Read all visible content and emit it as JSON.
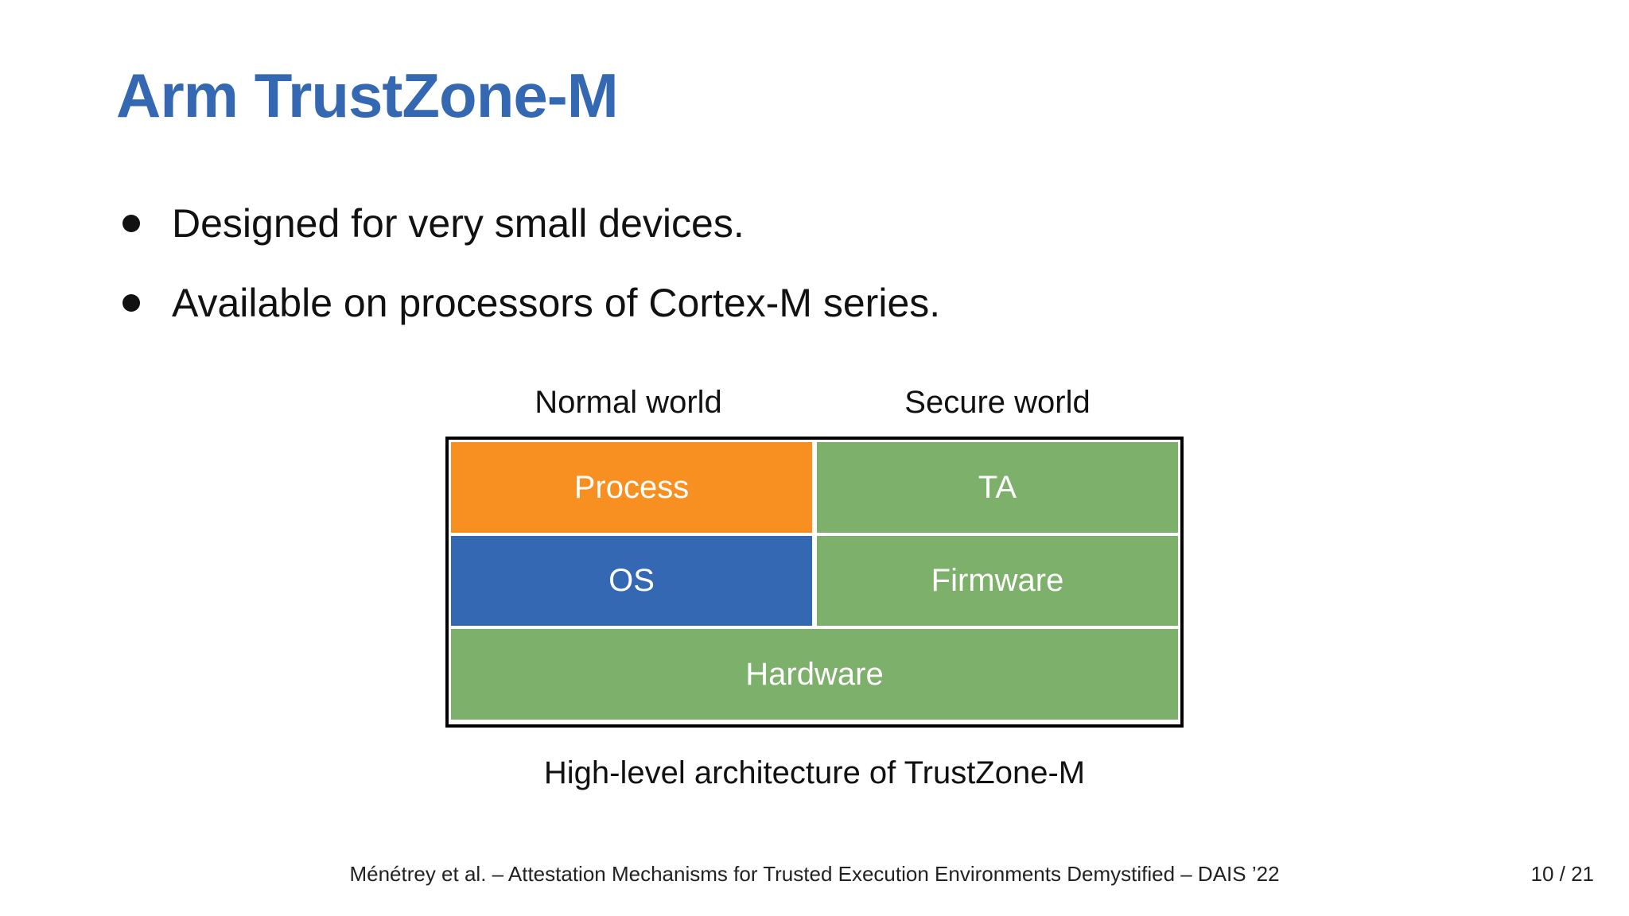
{
  "slide": {
    "title": "Arm TrustZone-M",
    "bullets": [
      "Designed for very small devices.",
      "Available on processors of Cortex-M series."
    ]
  },
  "diagram": {
    "normal_world_label": "Normal world",
    "secure_world_label": "Secure world",
    "blocks": {
      "process": {
        "label": "Process",
        "color": "#f78f21"
      },
      "ta": {
        "label": "TA",
        "color": "#7db06a"
      },
      "os": {
        "label": "OS",
        "color": "#3568b2"
      },
      "firmware": {
        "label": "Firmware",
        "color": "#7db06a"
      },
      "hardware": {
        "label": "Hardware",
        "color": "#7db06a"
      }
    },
    "caption": "High-level architecture of TrustZone-M"
  },
  "footer": {
    "citation": "Ménétrey  et al. – Attestation Mechanisms for Trusted Execution Environments Demystified – DAIS ’22",
    "page": "10 / 21"
  }
}
